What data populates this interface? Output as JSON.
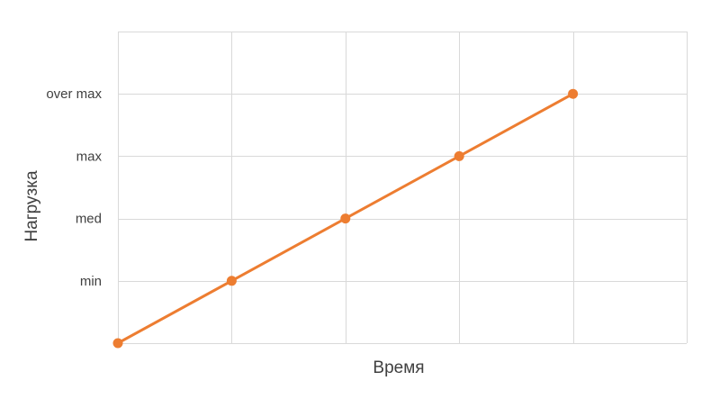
{
  "chart_data": {
    "type": "line",
    "title": "",
    "xlabel": "Время",
    "ylabel": "Нагрузка",
    "x": [
      0,
      1,
      2,
      3,
      4
    ],
    "xlim": [
      0,
      5
    ],
    "ylim": [
      0,
      5
    ],
    "yticks": [
      {
        "value": 1,
        "label": "min"
      },
      {
        "value": 2,
        "label": "med"
      },
      {
        "value": 3,
        "label": "max"
      },
      {
        "value": 4,
        "label": "over max"
      }
    ],
    "series": [
      {
        "values": [
          0,
          1,
          2,
          3,
          4
        ],
        "color": "#ed7d31"
      }
    ],
    "grid": true,
    "legend": "none"
  }
}
